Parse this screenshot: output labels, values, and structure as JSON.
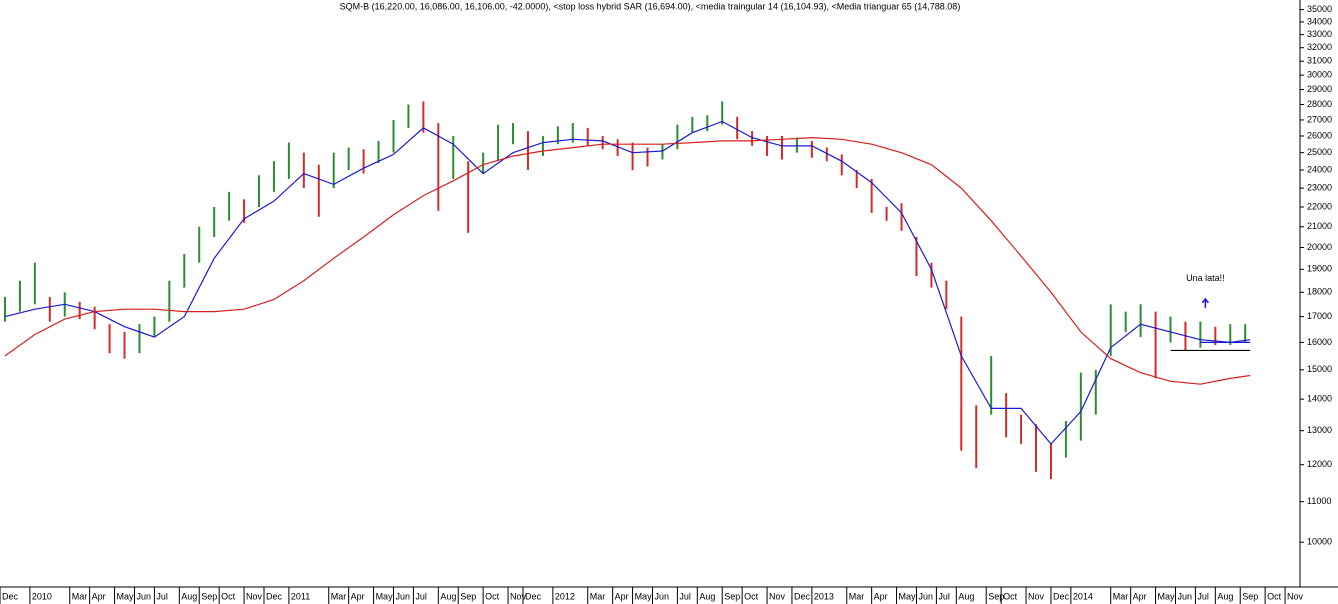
{
  "chart_data": {
    "type": "ohlc",
    "title": "SQM-B (16,220.00, 16,086.00, 16,106.00, -42.0000), <stop loss hybrid SAR (16,694.00), <media traingular 14 (16,104.93), <Media trianguar 65 (14,788.08)",
    "log_scale": true,
    "xlim": [
      -1,
      260
    ],
    "ylim": [
      9000,
      35800
    ],
    "yticks": [
      10000,
      11000,
      12000,
      13000,
      14000,
      15000,
      16000,
      17000,
      18000,
      19000,
      20000,
      21000,
      22000,
      23000,
      24000,
      25000,
      26000,
      27000,
      28000,
      29000,
      30000,
      31000,
      32000,
      33000,
      34000,
      35000
    ],
    "xticks": [
      {
        "value": -1,
        "label": "Dec"
      },
      {
        "value": 5,
        "label": "2010"
      },
      {
        "value": 13,
        "label": "Mar"
      },
      {
        "value": 17,
        "label": "Apr"
      },
      {
        "value": 22,
        "label": "May"
      },
      {
        "value": 26,
        "label": "Jun"
      },
      {
        "value": 30,
        "label": "Jul"
      },
      {
        "value": 35,
        "label": "Aug"
      },
      {
        "value": 39,
        "label": "Sep"
      },
      {
        "value": 43,
        "label": "Oct"
      },
      {
        "value": 48,
        "label": "Nov"
      },
      {
        "value": 52,
        "label": "Dec"
      },
      {
        "value": 57,
        "label": "2011"
      },
      {
        "value": 65,
        "label": "Mar"
      },
      {
        "value": 69,
        "label": "Apr"
      },
      {
        "value": 74,
        "label": "May"
      },
      {
        "value": 78,
        "label": "Jun"
      },
      {
        "value": 82,
        "label": "Jul"
      },
      {
        "value": 87,
        "label": "Aug"
      },
      {
        "value": 91,
        "label": "Sep"
      },
      {
        "value": 96,
        "label": "Oct"
      },
      {
        "value": 101,
        "label": "Nov"
      },
      {
        "value": 104,
        "label": "Dec"
      },
      {
        "value": 110,
        "label": "2012"
      },
      {
        "value": 117,
        "label": "Mar"
      },
      {
        "value": 122,
        "label": "Apr"
      },
      {
        "value": 126,
        "label": "May"
      },
      {
        "value": 130,
        "label": "Jun"
      },
      {
        "value": 135,
        "label": "Jul"
      },
      {
        "value": 139,
        "label": "Aug"
      },
      {
        "value": 144,
        "label": "Sep"
      },
      {
        "value": 148,
        "label": "Oct"
      },
      {
        "value": 153,
        "label": "Nov"
      },
      {
        "value": 158,
        "label": "Dec"
      },
      {
        "value": 162,
        "label": "2013"
      },
      {
        "value": 169,
        "label": "Mar"
      },
      {
        "value": 174,
        "label": "Apr"
      },
      {
        "value": 179,
        "label": "May"
      },
      {
        "value": 183,
        "label": "Jun"
      },
      {
        "value": 187,
        "label": "Jul"
      },
      {
        "value": 191,
        "label": "Aug"
      },
      {
        "value": 197,
        "label": "Sep"
      },
      {
        "value": 200,
        "label": "Oct"
      },
      {
        "value": 205,
        "label": "Nov"
      },
      {
        "value": 210,
        "label": "Dec"
      },
      {
        "value": 214,
        "label": "2014"
      },
      {
        "value": 222,
        "label": "Mar"
      },
      {
        "value": 226,
        "label": "Apr"
      },
      {
        "value": 231,
        "label": "May"
      },
      {
        "value": 235,
        "label": "Jun"
      },
      {
        "value": 239,
        "label": "Jul"
      },
      {
        "value": 243,
        "label": "Aug"
      },
      {
        "value": 248,
        "label": "Sep"
      },
      {
        "value": 253,
        "label": "Oct"
      },
      {
        "value": 257,
        "label": "Nov"
      }
    ],
    "up_color": "#2e8b2e",
    "down_color": "#d42a2a",
    "bars": {
      "x": [
        0,
        3,
        6,
        9,
        12,
        15,
        18,
        21,
        24,
        27,
        30,
        33,
        36,
        39,
        42,
        45,
        48,
        51,
        54,
        57,
        60,
        63,
        66,
        69,
        72,
        75,
        78,
        81,
        84,
        87,
        90,
        93,
        96,
        99,
        102,
        105,
        108,
        111,
        114,
        117,
        120,
        123,
        126,
        129,
        132,
        135,
        138,
        141,
        144,
        147,
        150,
        153,
        156,
        159,
        162,
        165,
        168,
        171,
        174,
        177,
        180,
        183,
        186,
        189,
        192,
        195,
        198,
        201,
        204,
        207,
        210,
        213,
        216,
        219,
        222,
        225,
        228,
        231,
        234,
        237,
        240,
        243,
        246,
        249
      ],
      "high": [
        17800,
        18500,
        19300,
        17800,
        18000,
        17600,
        17400,
        16700,
        16400,
        16700,
        17000,
        18500,
        19700,
        21000,
        22000,
        22800,
        22400,
        23700,
        24500,
        25600,
        25000,
        24300,
        25000,
        25300,
        25200,
        25700,
        27000,
        28000,
        28200,
        26800,
        26000,
        24500,
        25000,
        26700,
        26800,
        26300,
        26000,
        26600,
        26800,
        26500,
        26000,
        25800,
        25600,
        25300,
        25500,
        26700,
        27200,
        27300,
        28200,
        27200,
        26300,
        26000,
        26000,
        25900,
        25700,
        25300,
        24900,
        24000,
        23500,
        22000,
        22200,
        20500,
        19300,
        18500,
        17000,
        13800,
        15500,
        14200,
        13500,
        13200,
        12600,
        13300,
        14900,
        15000,
        17500,
        17200,
        17500,
        17200,
        17000,
        16800,
        16800,
        16600,
        16700,
        16700
      ],
      "low": [
        16800,
        17200,
        17500,
        16800,
        17000,
        16900,
        16500,
        15600,
        15400,
        15600,
        16200,
        16800,
        18200,
        19300,
        20500,
        21300,
        21200,
        22000,
        22800,
        23500,
        23000,
        21500,
        23000,
        24000,
        23800,
        24400,
        25000,
        26500,
        26200,
        21800,
        23500,
        20700,
        23800,
        24500,
        25500,
        24000,
        24800,
        25500,
        25600,
        25400,
        25200,
        24800,
        24000,
        24200,
        24600,
        25200,
        26200,
        26300,
        26700,
        25800,
        25400,
        24800,
        24600,
        25000,
        24700,
        24500,
        23700,
        23000,
        21700,
        21300,
        20800,
        18700,
        18200,
        17300,
        12400,
        11900,
        13500,
        12800,
        12600,
        11800,
        11600,
        12200,
        12700,
        13500,
        15500,
        16400,
        16200,
        14700,
        16000,
        15700,
        15800,
        15900,
        15900,
        16000
      ]
    },
    "series": [
      {
        "color": "#1a1ad4",
        "x": [
          0,
          6,
          12,
          18,
          24,
          30,
          36,
          42,
          48,
          54,
          60,
          66,
          72,
          78,
          84,
          90,
          96,
          102,
          108,
          114,
          120,
          126,
          132,
          138,
          144,
          150,
          156,
          162,
          168,
          174,
          180,
          186,
          192,
          198,
          204,
          210,
          216,
          222,
          228,
          234,
          240,
          246,
          250
        ],
        "values": [
          17000,
          17300,
          17500,
          17200,
          16600,
          16200,
          17000,
          19500,
          21400,
          22300,
          23800,
          23200,
          24100,
          24900,
          26500,
          25500,
          23800,
          25000,
          25600,
          25800,
          25700,
          25000,
          25100,
          26200,
          26900,
          25900,
          25400,
          25400,
          24500,
          23300,
          21700,
          19000,
          15500,
          13700,
          13700,
          12600,
          13600,
          15800,
          16700,
          16400,
          16100,
          16000,
          16100
        ]
      },
      {
        "color": "#d42020",
        "x": [
          0,
          6,
          12,
          18,
          24,
          30,
          36,
          42,
          48,
          54,
          60,
          66,
          72,
          78,
          84,
          90,
          96,
          102,
          108,
          114,
          120,
          126,
          132,
          138,
          144,
          150,
          156,
          162,
          168,
          174,
          180,
          186,
          192,
          198,
          204,
          210,
          216,
          222,
          228,
          234,
          240,
          246,
          250
        ],
        "values": [
          15500,
          16300,
          16900,
          17200,
          17300,
          17300,
          17200,
          17200,
          17300,
          17700,
          18500,
          19500,
          20500,
          21600,
          22600,
          23400,
          24300,
          24800,
          25100,
          25300,
          25500,
          25500,
          25500,
          25600,
          25700,
          25700,
          25800,
          25900,
          25800,
          25500,
          25000,
          24300,
          23000,
          21300,
          19600,
          18000,
          16400,
          15400,
          14900,
          14600,
          14500,
          14700,
          14800
        ]
      }
    ],
    "levels": [
      {
        "value": 15700,
        "from": 234,
        "to": 250,
        "color": "#000000"
      },
      {
        "value": 16000,
        "from": 240,
        "to": 250,
        "color": "#1a1ad4"
      }
    ],
    "annotation": {
      "text": "Una lata!!",
      "x": 241,
      "y": 18600,
      "color": "#1a1ad4"
    },
    "arrow": {
      "x": 241,
      "y": 17600,
      "color": "#1a1ad4"
    }
  }
}
